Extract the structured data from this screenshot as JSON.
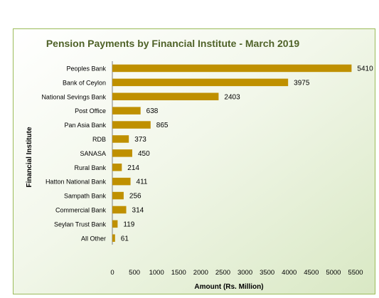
{
  "chart_data": {
    "type": "bar",
    "orientation": "horizontal",
    "title": "Pension Payments by Financial  Institute - March 2019",
    "xlabel": "Amount (Rs. Million)",
    "ylabel": "Financial  Institute",
    "xlim": [
      0,
      5500
    ],
    "xticks": [
      "0",
      "500",
      "1000",
      "1500",
      "2000",
      "2500",
      "3000",
      "3500",
      "4000",
      "4500",
      "5000",
      "5500"
    ],
    "categories": [
      "Peoples Bank",
      "Bank of Ceylon",
      "National Sevings Bank",
      "Post Office",
      "Pan Asia Bank",
      "RDB",
      "SANASA",
      "Rural Bank",
      "Hatton National Bank",
      "Sampath Bank",
      "Commercial Bank",
      "Seylan Trust Bank",
      "All Other"
    ],
    "values": [
      5410,
      3975,
      2403,
      638,
      865,
      373,
      450,
      214,
      411,
      256,
      314,
      119,
      61
    ],
    "data_labels": [
      "5410",
      "3975",
      "2403",
      "638",
      "865",
      "373",
      "450",
      "214",
      "411",
      "256",
      "314",
      "119",
      "61"
    ],
    "bar_color": "#bf9000",
    "title_color": "#4f6228",
    "border_color": "#9bbb59",
    "grid": false,
    "legend": "none"
  }
}
